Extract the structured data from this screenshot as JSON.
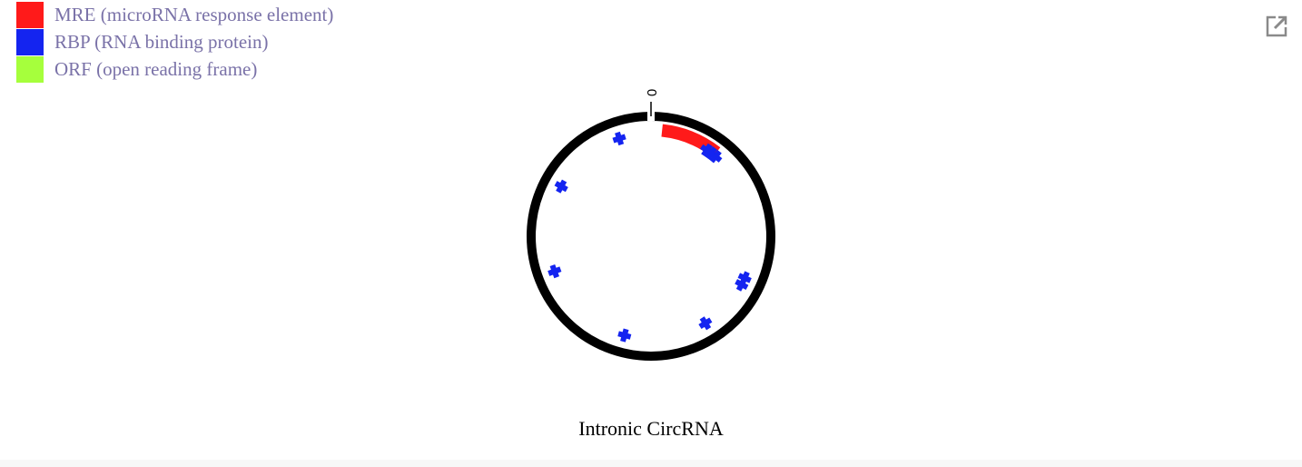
{
  "legend": {
    "items": [
      {
        "label": "MRE (microRNA response element)",
        "color": "#ff1a1a"
      },
      {
        "label": "RBP (RNA binding protein)",
        "color": "#1424f0"
      },
      {
        "label": "ORF (open reading frame)",
        "color": "#a6ff3c"
      }
    ]
  },
  "toolbar": {
    "popout_icon": "external-link-icon"
  },
  "diagram": {
    "title": "Intronic CircRNA",
    "origin_label": "0",
    "ring_color": "#000000",
    "mre": {
      "color": "#ff1a1a",
      "start_deg": 6,
      "end_deg": 38
    },
    "rbp": {
      "color": "#1424f0",
      "angles_deg": [
        33,
        36,
        39,
        114,
        118,
        148,
        195,
        250,
        299,
        342
      ]
    }
  }
}
